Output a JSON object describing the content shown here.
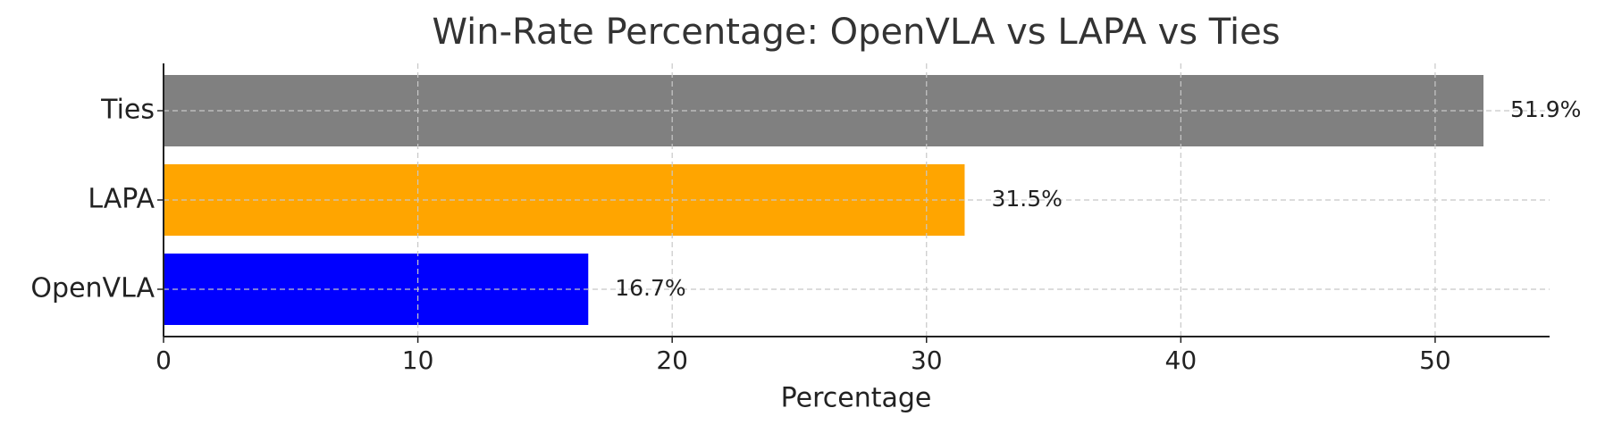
{
  "chart_data": {
    "type": "bar",
    "orientation": "horizontal",
    "title": "Win-Rate Percentage: OpenVLA vs LAPA vs Ties",
    "x_label": "Percentage",
    "categories": [
      "OpenVLA",
      "LAPA",
      "Ties"
    ],
    "values": [
      16.7,
      31.5,
      51.9
    ],
    "value_labels": [
      "16.7%",
      "31.5%",
      "51.9%"
    ],
    "colors": [
      "#0000ff",
      "#ffa500",
      "#808080"
    ],
    "xlim": [
      0,
      54.5
    ],
    "xticks": [
      0,
      10,
      20,
      30,
      40,
      50
    ],
    "grid": true
  }
}
